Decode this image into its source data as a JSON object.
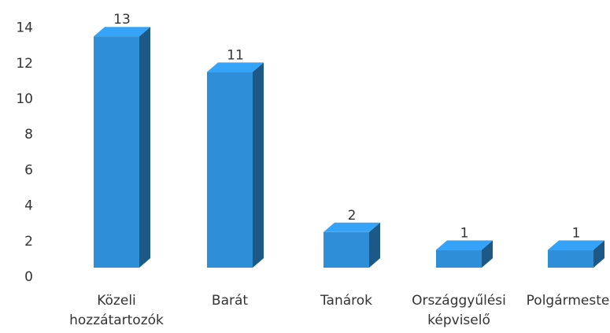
{
  "chart_data": {
    "type": "bar3d",
    "categories": [
      "Közeli hozzátartozók",
      "Barát",
      "Tanárok",
      "Országgyűlési képviselő",
      "Polgármester"
    ],
    "values": [
      13,
      11,
      2,
      1,
      1
    ],
    "color": "#2e8fd8",
    "ylim": [
      0,
      14
    ],
    "yticks": [
      0,
      2,
      4,
      6,
      8,
      10,
      12,
      14
    ],
    "grid": false
  }
}
